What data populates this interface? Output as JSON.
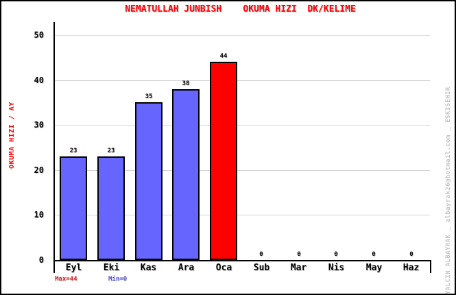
{
  "title": "NEMATULLAH JUNBISH    OKUMA HIZI  DK/KELIME",
  "y_axis_title": "OKUMA HIZI / AY",
  "footer": {
    "max_label": "Max=44",
    "min_label": "Min=0"
  },
  "watermark": "YALCIN ALBAYRAK _ albayrak26@hotmail.com _ ESKISEHIR",
  "colors": {
    "title": "#ff0000",
    "bar_default": "#6666ff",
    "bar_max": "#ff0000",
    "bar_border": "#000000",
    "gridline": "#d4d4d4",
    "axis": "#000000",
    "max_label": "#dd2222",
    "min_label": "#5555dd",
    "watermark": "#c6c6c6"
  },
  "chart_data": {
    "type": "bar",
    "categories": [
      "Eyl",
      "Eki",
      "Kas",
      "Ara",
      "Oca",
      "Sub",
      "Mar",
      "Nis",
      "May",
      "Haz"
    ],
    "values": [
      23,
      23,
      35,
      38,
      44,
      0,
      0,
      0,
      0,
      0
    ],
    "title": "NEMATULLAH JUNBISH  OKUMA HIZI  DK/KELIME",
    "xlabel": "",
    "ylabel": "OKUMA HIZI / AY",
    "ylim": [
      0,
      53
    ],
    "yticks": [
      0,
      10,
      20,
      30,
      40,
      50
    ],
    "grid": true,
    "legend": false,
    "max_value": 44,
    "min_value": 0,
    "highlight_index": 4
  }
}
